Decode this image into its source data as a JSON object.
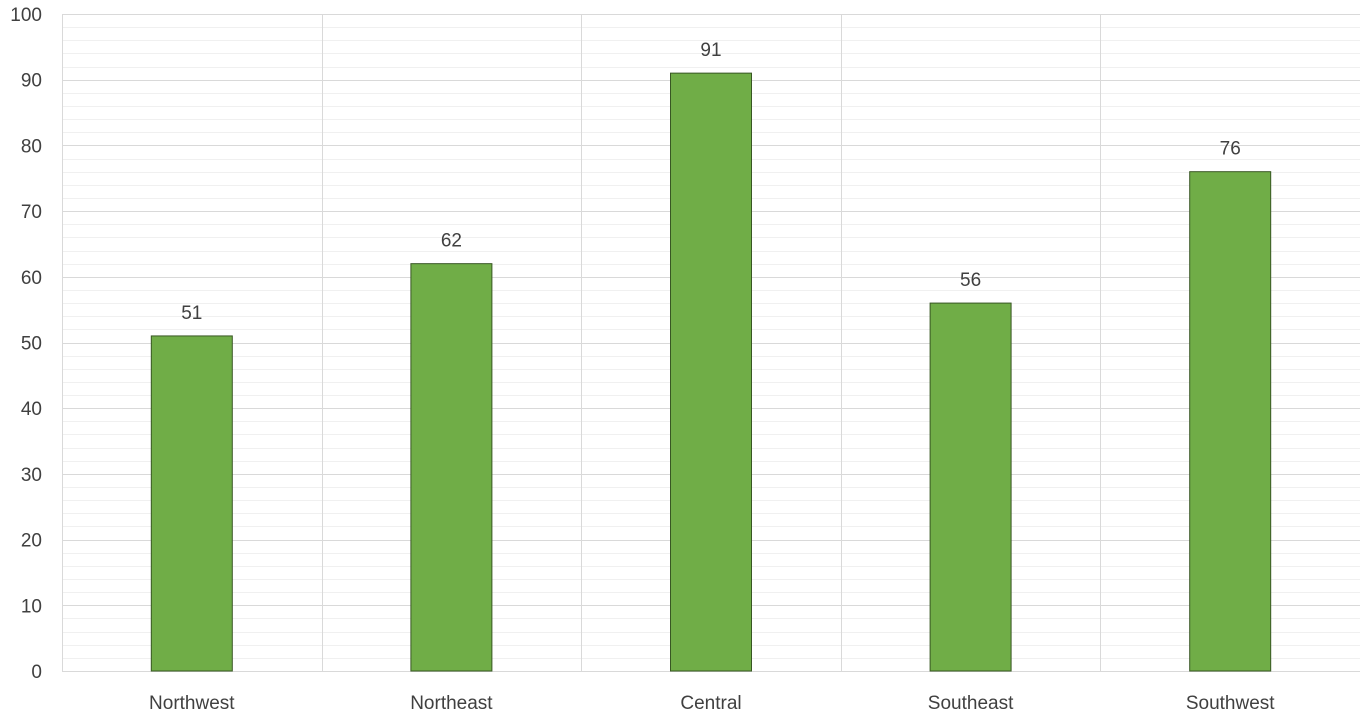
{
  "chart_data": {
    "type": "bar",
    "categories": [
      "Northwest",
      "Northeast",
      "Central",
      "Southeast",
      "Southwest"
    ],
    "values": [
      51,
      62,
      91,
      56,
      76
    ],
    "title": "",
    "xlabel": "",
    "ylabel": "",
    "ylim": [
      0,
      100
    ],
    "y_major_step": 10,
    "y_minor_step": 2,
    "grid": true,
    "legend": "none",
    "data_labels": true,
    "colors": {
      "bar_fill": "#70ad47",
      "bar_stroke": "#385723",
      "major_grid": "#d9d9d9",
      "minor_grid": "#f0f0f0",
      "category_divider": "#d9d9d9",
      "text": "#404040"
    }
  }
}
